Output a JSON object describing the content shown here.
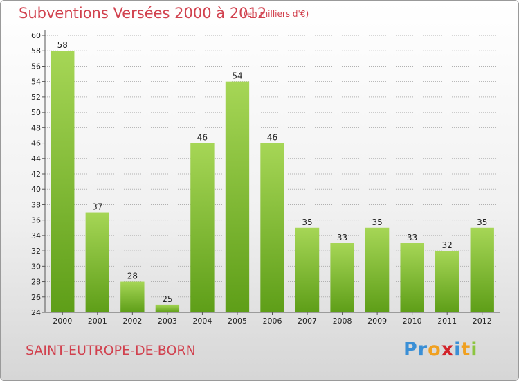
{
  "title": "Subventions Versées 2000 à 2012",
  "subtitle": "(en milliers d'€)",
  "commune": "SAINT-EUTROPE-DE-BORN",
  "logo": {
    "text": "Proxiti",
    "letters": [
      {
        "ch": "P",
        "color": "#3a8fd6"
      },
      {
        "ch": "r",
        "color": "#3a8fd6"
      },
      {
        "ch": "o",
        "color": "#f0a020"
      },
      {
        "ch": "x",
        "color": "#d2232a"
      },
      {
        "ch": "i",
        "color": "#3a8fd6"
      },
      {
        "ch": "t",
        "color": "#f0a020"
      },
      {
        "ch": "i",
        "color": "#8cc540"
      }
    ]
  },
  "colors": {
    "title": "#d1414e",
    "bar_top": "#a6d656",
    "bar_bottom": "#5e9e18",
    "grid": "#b0b0b0"
  },
  "chart_data": {
    "type": "bar",
    "title": "Subventions Versées 2000 à 2012",
    "subtitle": "(en milliers d'€)",
    "categories": [
      "2000",
      "2001",
      "2002",
      "2003",
      "2004",
      "2005",
      "2006",
      "2007",
      "2008",
      "2009",
      "2010",
      "2011",
      "2012"
    ],
    "values": [
      58,
      37,
      28,
      25,
      46,
      54,
      46,
      35,
      33,
      35,
      33,
      32,
      35
    ],
    "ylim": [
      24,
      60
    ],
    "ytick_step": 2,
    "grid": true,
    "xlabel": "",
    "ylabel": ""
  }
}
